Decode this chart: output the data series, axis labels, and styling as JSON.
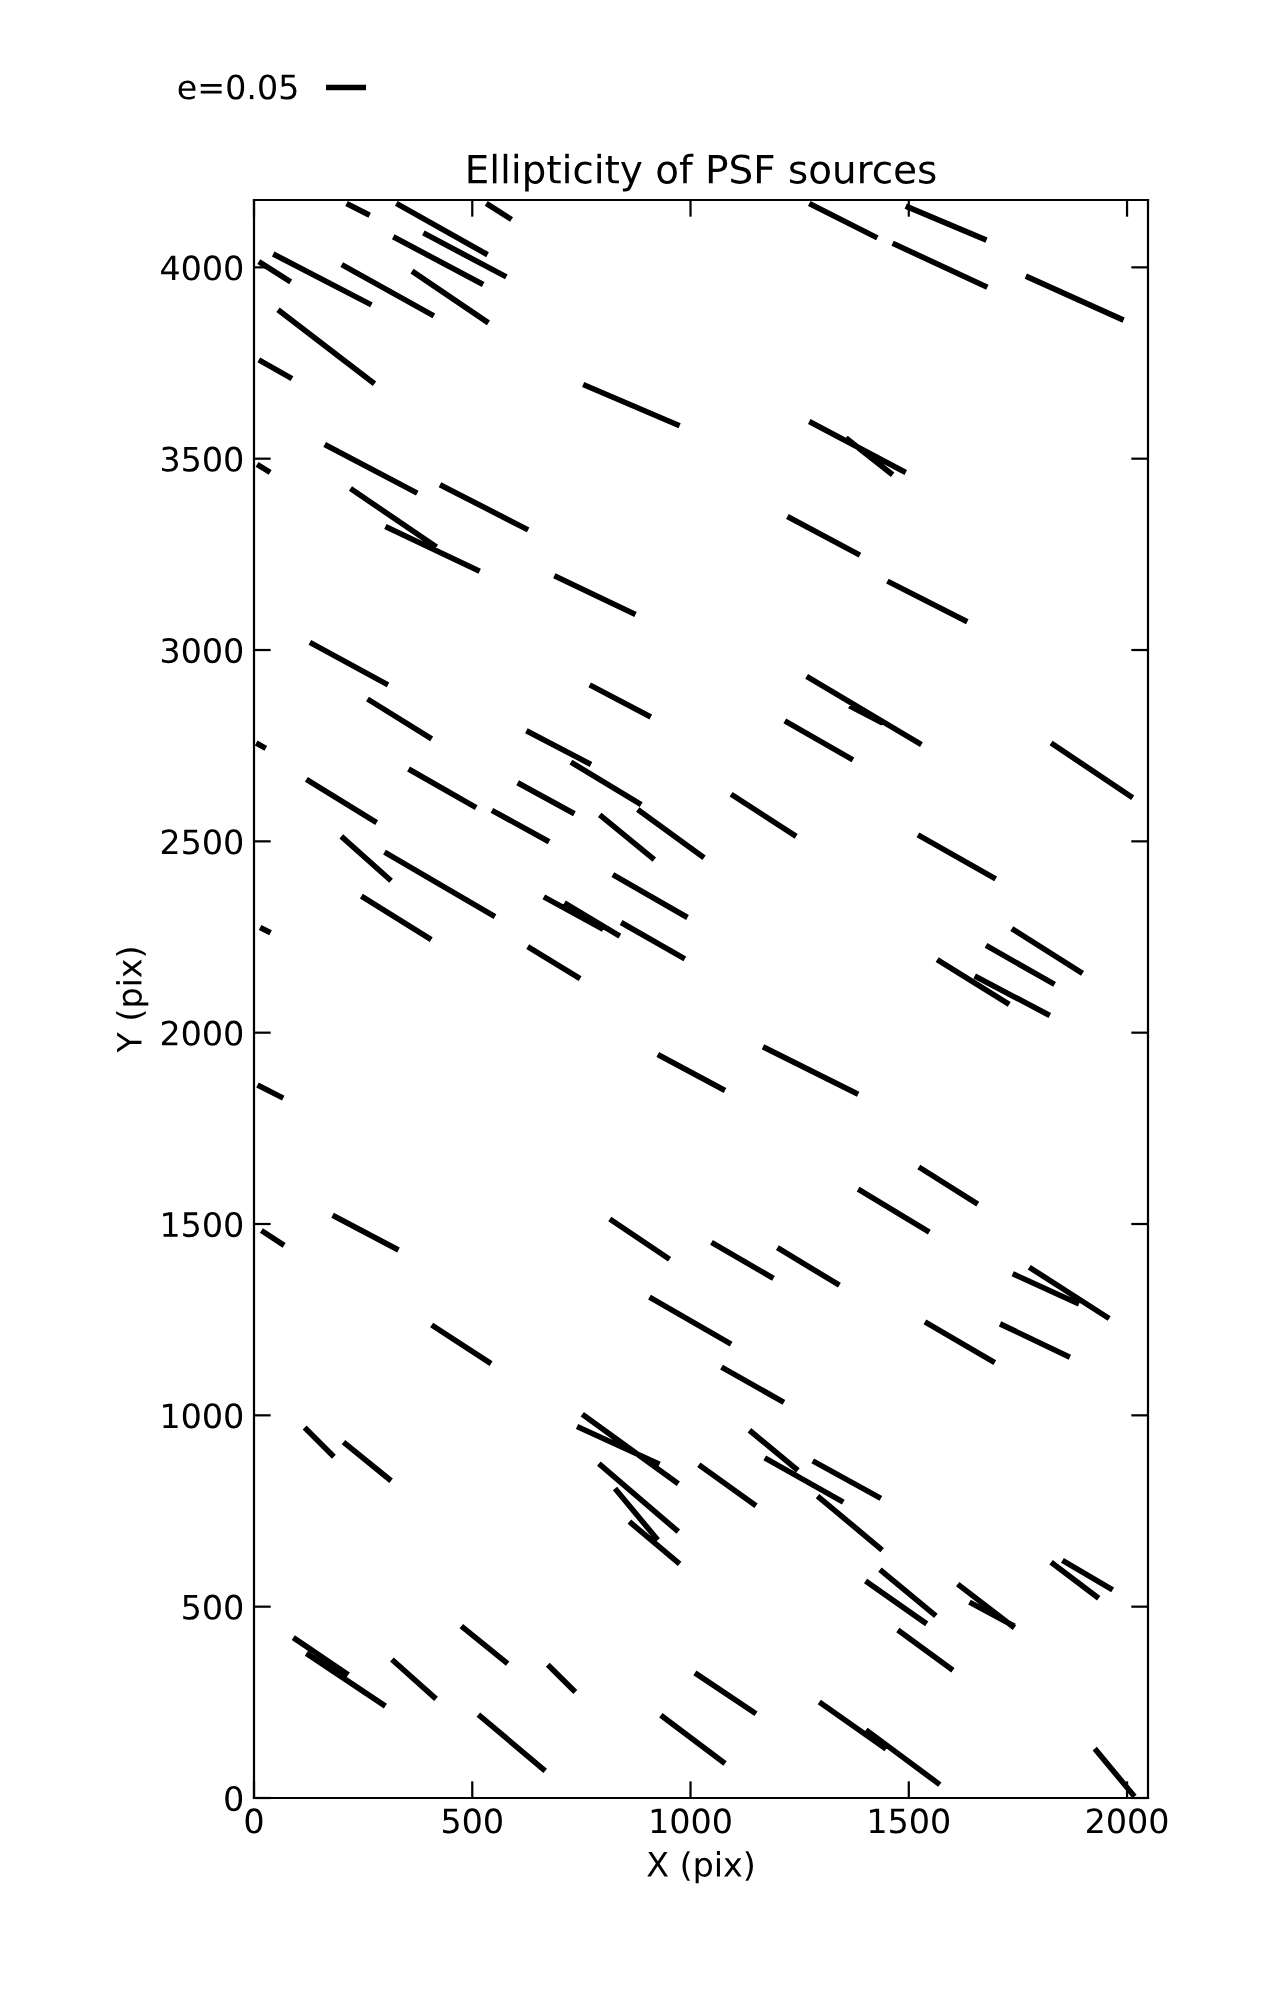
{
  "chart_data": {
    "type": "line",
    "title": "Ellipticity of PSF sources",
    "xlabel": "X (pix)",
    "ylabel": "Y (pix)",
    "xlim": [
      0,
      2048
    ],
    "ylim": [
      0,
      4176
    ],
    "xticks": [
      0,
      500,
      1000,
      1500,
      2000
    ],
    "yticks": [
      0,
      500,
      1000,
      1500,
      2000,
      2500,
      3000,
      3500,
      4000
    ],
    "grid": false,
    "legend": "top left",
    "marker": "none",
    "line_style": "solid",
    "series": [
      {
        "name": "e=0.05",
        "color": "#000000",
        "x": [
          212,
          265,
          null,
          326,
          535,
          null,
          532,
          590,
          null,
          388,
          578,
          null,
          319,
          525,
          null,
          11,
          84,
          null,
          44,
          269,
          null,
          201,
          412,
          null,
          362,
          537,
          null,
          55,
          276,
          null,
          11,
          87,
          null,
          754,
          975,
          null,
          162,
          374,
          null,
          7,
          37,
          null,
          221,
          418,
          null,
          301,
          517,
          null,
          426,
          628,
          null,
          688,
          874,
          null,
          128,
          307,
          null,
          769,
          909,
          null,
          260,
          407,
          null,
          624,
          772,
          null,
          726,
          887,
          null,
          1272,
          1428,
          null,
          1493,
          1678,
          null,
          1463,
          1680,
          null,
          1768,
          1992,
          null,
          1272,
          1493,
          null,
          1356,
          1463,
          null,
          1222,
          1388,
          null,
          1451,
          1634,
          null,
          1266,
          1529,
          null,
          1364,
          1440,
          null,
          1216,
          1372,
          null,
          1826,
          2013,
          null,
          1093,
          1242,
          null,
          879,
          1031,
          null,
          1521,
          1699,
          null,
          1736,
          1898,
          null,
          1677,
          1834,
          null,
          1565,
          1730,
          null,
          1651,
          1823,
          null,
          1166,
          1384,
          null,
          925,
          1079,
          null,
          1523,
          1658,
          null,
          1384,
          1547,
          null,
          1048,
          1190,
          null,
          1199,
          1341,
          null,
          1738,
          1890,
          null,
          1776,
          1959,
          null,
          5,
          27,
          null,
          120,
          281,
          null,
          354,
          509,
          null,
          604,
          734,
          null,
          545,
          676,
          null,
          792,
          917,
          null,
          200,
          314,
          null,
          299,
          552,
          null,
          246,
          406,
          null,
          822,
          993,
          null,
          664,
          800,
          null,
          711,
          838,
          null,
          841,
          987,
          null,
          14,
          38,
          null,
          627,
          747,
          null,
          8,
          67,
          null,
          180,
          331,
          null,
          815,
          952,
          null,
          17,
          69,
          null,
          407,
          543,
          null,
          906,
          1093,
          null,
          116,
          183,
          null,
          205,
          314,
          null,
          752,
          972,
          null,
          740,
          929,
          null,
          790,
          972,
          null,
          827,
          925,
          null,
          860,
          975,
          null,
          90,
          216,
          null,
          120,
          301,
          null,
          475,
          581,
          null,
          316,
          417,
          null,
          673,
          736,
          null,
          514,
          667,
          null,
          932,
          1079,
          null,
          1537,
          1697,
          null,
          1709,
          1869,
          null,
          1071,
          1214,
          null,
          1135,
          1246,
          null,
          1170,
          1350,
          null,
          1280,
          1436,
          null,
          1019,
          1150,
          null,
          1291,
          1439,
          null,
          1434,
          1562,
          null,
          1401,
          1541,
          null,
          1612,
          1742,
          null,
          1639,
          1742,
          null,
          1826,
          1935,
          null,
          1852,
          1967,
          null,
          1475,
          1601,
          null,
          1010,
          1150,
          null,
          1295,
          1448,
          null,
          1402,
          1571,
          null,
          1926,
          2017
        ],
        "values": [
          4167,
          4136,
          null,
          4167,
          4033,
          null,
          4167,
          4125,
          null,
          4090,
          3975,
          null,
          4080,
          3955,
          null,
          4015,
          3962,
          null,
          4035,
          3902,
          null,
          4007,
          3873,
          null,
          3990,
          3855,
          null,
          3889,
          3696,
          null,
          3758,
          3709,
          null,
          3694,
          3586,
          null,
          3537,
          3410,
          null,
          3485,
          3464,
          null,
          3422,
          3269,
          null,
          3323,
          3206,
          null,
          3432,
          3314,
          null,
          3194,
          3093,
          null,
          3020,
          2909,
          null,
          2909,
          2825,
          null,
          2872,
          2768,
          null,
          2789,
          2701,
          null,
          2707,
          2596,
          null,
          4167,
          4077,
          null,
          4160,
          4071,
          null,
          4063,
          3948,
          null,
          3977,
          3862,
          null,
          3597,
          3464,
          null,
          3554,
          3458,
          null,
          3349,
          3248,
          null,
          3180,
          3074,
          null,
          2931,
          2753,
          null,
          2854,
          2809,
          null,
          2815,
          2713,
          null,
          2757,
          2614,
          null,
          2623,
          2513,
          null,
          2583,
          2457,
          null,
          2517,
          2402,
          null,
          2272,
          2155,
          null,
          2228,
          2126,
          null,
          2191,
          2074,
          null,
          2148,
          2045,
          null,
          1963,
          1839,
          null,
          1943,
          1849,
          null,
          1649,
          1552,
          null,
          1591,
          1479,
          null,
          1452,
          1358,
          null,
          1438,
          1340,
          null,
          1370,
          1291,
          null,
          1387,
          1253,
          null,
          2757,
          2743,
          null,
          2662,
          2549,
          null,
          2689,
          2588,
          null,
          2653,
          2572,
          null,
          2581,
          2499,
          null,
          2569,
          2452,
          null,
          2513,
          2397,
          null,
          2472,
          2303,
          null,
          2357,
          2243,
          null,
          2413,
          2301,
          null,
          2355,
          2270,
          null,
          2339,
          2252,
          null,
          2288,
          2193,
          null,
          2275,
          2261,
          null,
          2225,
          2141,
          null,
          1863,
          1829,
          null,
          1523,
          1432,
          null,
          1513,
          1408,
          null,
          1483,
          1444,
          null,
          1236,
          1135,
          null,
          1309,
          1186,
          null,
          968,
          892,
          null,
          930,
          829,
          null,
          1003,
          821,
          null,
          971,
          872,
          null,
          874,
          696,
          null,
          809,
          674,
          null,
          722,
          612,
          null,
          419,
          322,
          null,
          378,
          240,
          null,
          449,
          351,
          null,
          362,
          259,
          null,
          348,
          277,
          null,
          218,
          71,
          null,
          216,
          90,
          null,
          1244,
          1138,
          null,
          1239,
          1152,
          null,
          1126,
          1034,
          null,
          961,
          856,
          null,
          889,
          773,
          null,
          881,
          783,
          null,
          871,
          764,
          null,
          789,
          648,
          null,
          597,
          476,
          null,
          567,
          455,
          null,
          559,
          445,
          null,
          512,
          449,
          null,
          616,
          522,
          null,
          621,
          544,
          null,
          439,
          334,
          null,
          327,
          220,
          null,
          251,
          128,
          null,
          178,
          35,
          null,
          129,
          4
        ]
      }
    ]
  }
}
